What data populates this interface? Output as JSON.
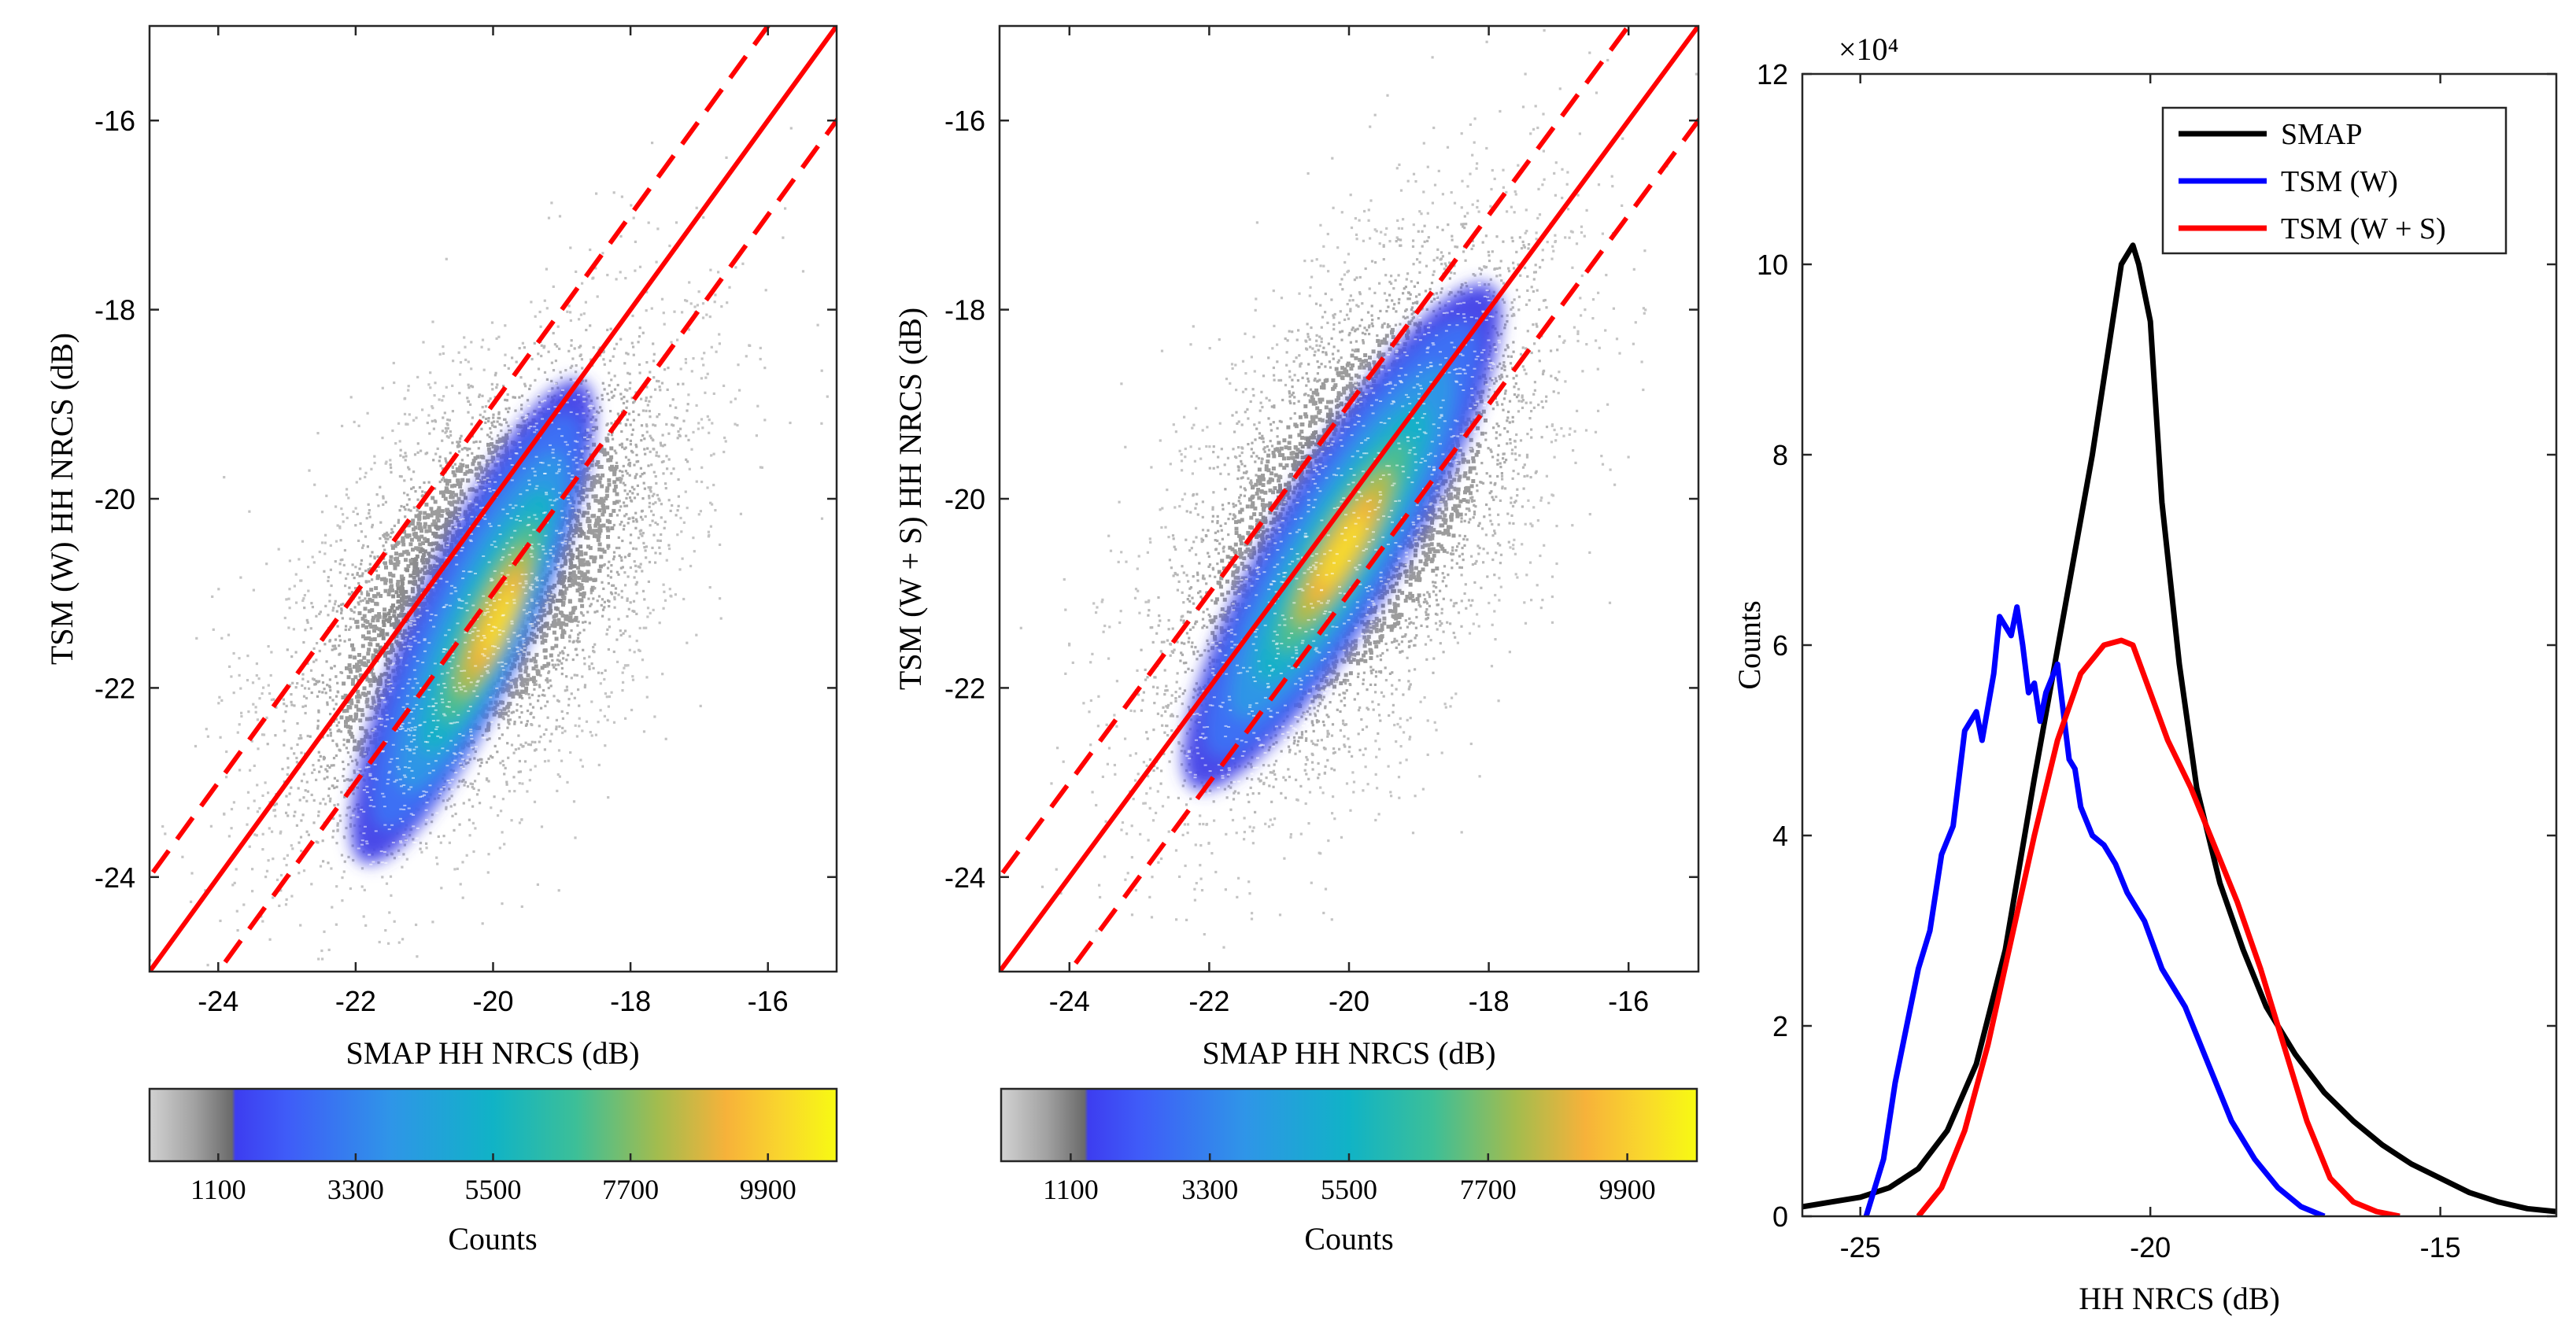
{
  "chart_data": [
    {
      "type": "density-scatter",
      "panel": "left",
      "xlabel": "SMAP HH NRCS (dB)",
      "ylabel": "TSM (W) HH NRCS (dB)",
      "xlim": [
        -25,
        -15
      ],
      "ylim": [
        -25,
        -15
      ],
      "xticks": [
        -24,
        -22,
        -20,
        -18,
        -16
      ],
      "yticks": [
        -24,
        -22,
        -20,
        -18,
        -16
      ],
      "cloud": {
        "center": [
          -20.2,
          -21.0
        ],
        "slope": 0.9,
        "spread_major": 3.2,
        "spread_minor": 1.6
      },
      "core": {
        "center": [
          -20.3,
          -21.3
        ],
        "slope": 1.6,
        "half_length": 3.0,
        "half_width": 0.9
      },
      "peak": [
        -20.1,
        -21.6
      ],
      "reference_lines": [
        {
          "style": "solid",
          "color": "#ff0000",
          "slope": 1,
          "offset": 0
        },
        {
          "style": "dashed",
          "color": "#ff0000",
          "slope": 1,
          "offset": 1
        },
        {
          "style": "dashed",
          "color": "#ff0000",
          "slope": 1,
          "offset": -1
        }
      ],
      "colorbar": {
        "label": "Counts",
        "ticks": [
          "1100",
          "3300",
          "5500",
          "7700",
          "9900"
        ],
        "min": 0,
        "max": 11000
      }
    },
    {
      "type": "density-scatter",
      "panel": "middle",
      "xlabel": "SMAP HH NRCS (dB)",
      "ylabel": "TSM (W + S) HH NRCS (dB)",
      "xlim": [
        -25,
        -15
      ],
      "ylim": [
        -25,
        -15
      ],
      "xticks": [
        -24,
        -22,
        -20,
        -18,
        -16
      ],
      "yticks": [
        -24,
        -22,
        -20,
        -18,
        -16
      ],
      "cloud": {
        "center": [
          -20.0,
          -20.2
        ],
        "slope": 1.1,
        "spread_major": 3.3,
        "spread_minor": 1.7
      },
      "core": {
        "center": [
          -20.1,
          -20.4
        ],
        "slope": 1.25,
        "half_length": 3.4,
        "half_width": 1.0
      },
      "peak": [
        -20.3,
        -20.5
      ],
      "reference_lines": [
        {
          "style": "solid",
          "color": "#ff0000",
          "slope": 1,
          "offset": 0
        },
        {
          "style": "dashed",
          "color": "#ff0000",
          "slope": 1,
          "offset": 1
        },
        {
          "style": "dashed",
          "color": "#ff0000",
          "slope": 1,
          "offset": -1
        }
      ],
      "colorbar": {
        "label": "Counts",
        "ticks": [
          "1100",
          "3300",
          "5500",
          "7700",
          "9900"
        ],
        "min": 0,
        "max": 11000
      }
    },
    {
      "type": "line",
      "panel": "right",
      "xlabel": "HH NRCS (dB)",
      "ylabel": "Counts",
      "y_multiplier": "×10⁴",
      "xlim": [
        -26,
        -13
      ],
      "ylim": [
        0,
        12
      ],
      "xticks": [
        -25,
        -20,
        -15
      ],
      "yticks": [
        0,
        2,
        4,
        6,
        8,
        10,
        12
      ],
      "legend_position": "top-right",
      "series": [
        {
          "name": "SMAP",
          "color": "#000000",
          "x": [
            -26,
            -25.5,
            -25,
            -24.5,
            -24,
            -23.5,
            -23,
            -22.5,
            -22,
            -21.5,
            -21,
            -20.7,
            -20.5,
            -20.3,
            -20.2,
            -20.0,
            -19.8,
            -19.5,
            -19.2,
            -18.8,
            -18.4,
            -18,
            -17.5,
            -17,
            -16.5,
            -16,
            -15.5,
            -15,
            -14.5,
            -14,
            -13.5,
            -13
          ],
          "y": [
            0.1,
            0.15,
            0.2,
            0.3,
            0.5,
            0.9,
            1.6,
            2.8,
            4.6,
            6.3,
            8.0,
            9.2,
            10.0,
            10.2,
            10.0,
            9.4,
            7.5,
            5.8,
            4.5,
            3.5,
            2.8,
            2.2,
            1.7,
            1.3,
            1.0,
            0.75,
            0.55,
            0.4,
            0.25,
            0.15,
            0.08,
            0.05
          ]
        },
        {
          "name": "TSM (W)",
          "color": "#0000ff",
          "x": [
            -24.9,
            -24.6,
            -24.4,
            -24.2,
            -24.0,
            -23.8,
            -23.6,
            -23.4,
            -23.2,
            -23.0,
            -22.9,
            -22.7,
            -22.6,
            -22.4,
            -22.3,
            -22.2,
            -22.1,
            -22.0,
            -21.9,
            -21.8,
            -21.6,
            -21.5,
            -21.4,
            -21.3,
            -21.2,
            -21.0,
            -20.8,
            -20.6,
            -20.4,
            -20.1,
            -19.8,
            -19.4,
            -19.0,
            -18.6,
            -18.2,
            -17.8,
            -17.4,
            -17.0
          ],
          "y": [
            0,
            0.6,
            1.4,
            2.0,
            2.6,
            3.0,
            3.8,
            4.1,
            5.1,
            5.3,
            5.0,
            5.7,
            6.3,
            6.1,
            6.4,
            6.0,
            5.5,
            5.6,
            5.2,
            5.5,
            5.8,
            5.3,
            4.8,
            4.7,
            4.3,
            4.0,
            3.9,
            3.7,
            3.4,
            3.1,
            2.6,
            2.2,
            1.6,
            1.0,
            0.6,
            0.3,
            0.1,
            0
          ]
        },
        {
          "name": "TSM (W + S)",
          "color": "#ff0000",
          "x": [
            -24.0,
            -23.6,
            -23.2,
            -22.8,
            -22.4,
            -22.0,
            -21.6,
            -21.2,
            -20.8,
            -20.5,
            -20.3,
            -20.0,
            -19.7,
            -19.3,
            -18.9,
            -18.5,
            -18.1,
            -17.7,
            -17.3,
            -16.9,
            -16.5,
            -16.1,
            -15.7
          ],
          "y": [
            0,
            0.3,
            0.9,
            1.8,
            2.9,
            4.0,
            5.0,
            5.7,
            6.0,
            6.05,
            6.0,
            5.5,
            5.0,
            4.5,
            3.9,
            3.3,
            2.6,
            1.8,
            1.0,
            0.4,
            0.15,
            0.05,
            0
          ]
        }
      ]
    }
  ]
}
